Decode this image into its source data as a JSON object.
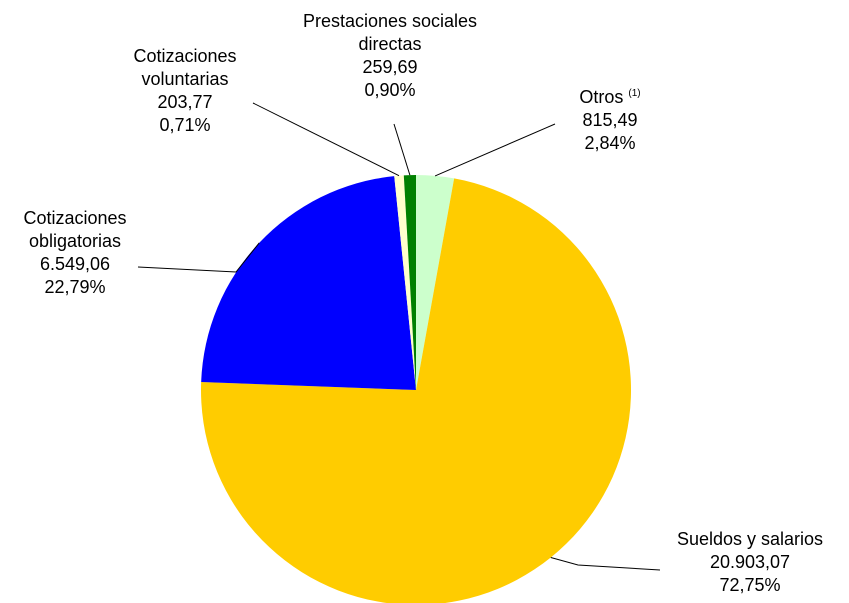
{
  "chart_data": {
    "type": "pie",
    "title": "",
    "slices": [
      {
        "key": "otros",
        "name": "Otros",
        "note": "(1)",
        "value": 815.49,
        "value_label": "815,49",
        "percent": 2.84,
        "percent_label": "2,84%",
        "color": "#CCFFCC"
      },
      {
        "key": "sueldos",
        "name": "Sueldos y salarios",
        "value": 20903.07,
        "value_label": "20.903,07",
        "percent": 72.75,
        "percent_label": "72,75%",
        "color": "#FFCC00"
      },
      {
        "key": "obligatorias",
        "name_lines": [
          "Cotizaciones",
          "obligatorias"
        ],
        "name": "Cotizaciones obligatorias",
        "value": 6549.06,
        "value_label": "6.549,06",
        "percent": 22.79,
        "percent_label": "22,79%",
        "color": "#0000FF"
      },
      {
        "key": "voluntarias",
        "name_lines": [
          "Cotizaciones",
          "voluntarias"
        ],
        "name": "Cotizaciones voluntarias",
        "value": 203.77,
        "value_label": "203,77",
        "percent": 0.71,
        "percent_label": "0,71%",
        "color": "#FFFFCC"
      },
      {
        "key": "prestaciones",
        "name_lines": [
          "Prestaciones sociales",
          "directas"
        ],
        "name": "Prestaciones sociales directas",
        "value": 259.69,
        "value_label": "259,69",
        "percent": 0.9,
        "percent_label": "0,90%",
        "color": "#008000"
      }
    ]
  }
}
